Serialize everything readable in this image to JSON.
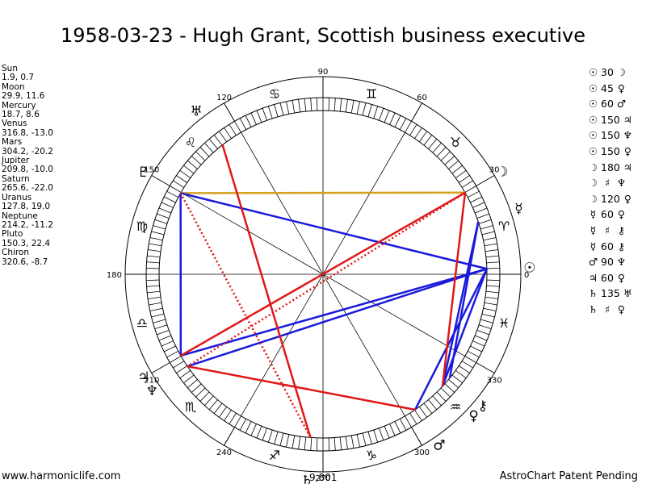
{
  "title": "1958-03-23 - Hugh Grant, Scottish business executive",
  "planets": [
    {
      "name": "Sun",
      "coords": "1.9, 0.7",
      "lon": 1.9,
      "glyph": "☉"
    },
    {
      "name": "Moon",
      "coords": "29.9, 11.6",
      "lon": 29.9,
      "glyph": "☽"
    },
    {
      "name": "Mercury",
      "coords": "18.7, 8.6",
      "lon": 18.7,
      "glyph": "☿"
    },
    {
      "name": "Venus",
      "coords": "316.8, -13.0",
      "lon": 316.8,
      "glyph": "♀"
    },
    {
      "name": "Mars",
      "coords": "304.2, -20.2",
      "lon": 304.2,
      "glyph": "♂"
    },
    {
      "name": "Jupiter",
      "coords": "209.8, -10.0",
      "lon": 209.8,
      "glyph": "♃"
    },
    {
      "name": "Saturn",
      "coords": "265.6, -22.0",
      "lon": 265.6,
      "glyph": "♄"
    },
    {
      "name": "Uranus",
      "coords": "127.8, 19.0",
      "lon": 127.8,
      "glyph": "♅"
    },
    {
      "name": "Neptune",
      "coords": "214.2, -11.2",
      "lon": 214.2,
      "glyph": "♆"
    },
    {
      "name": "Pluto",
      "coords": "150.3, 22.4",
      "lon": 150.3,
      "glyph": "♇"
    },
    {
      "name": "Chiron",
      "coords": "320.6, -8.7",
      "lon": 320.6,
      "glyph": "⚷"
    }
  ],
  "aspects": [
    {
      "p1": "☉",
      "angle": "30",
      "p2": "☽"
    },
    {
      "p1": "☉",
      "angle": "45",
      "p2": "♀"
    },
    {
      "p1": "☉",
      "angle": "60",
      "p2": "♂"
    },
    {
      "p1": "☉",
      "angle": "150",
      "p2": "♃"
    },
    {
      "p1": "☉",
      "angle": "150",
      "p2": "♆"
    },
    {
      "p1": "☉",
      "angle": "150",
      "p2": "♀"
    },
    {
      "p1": "☽",
      "angle": "180",
      "p2": "♃"
    },
    {
      "p1": "☽",
      "angle": "♯",
      "p2": "♆"
    },
    {
      "p1": "☽",
      "angle": "120",
      "p2": "♀"
    },
    {
      "p1": "☿",
      "angle": "60",
      "p2": "♀"
    },
    {
      "p1": "☿",
      "angle": "♯",
      "p2": "⚷"
    },
    {
      "p1": "☿",
      "angle": "60",
      "p2": "⚷"
    },
    {
      "p1": "♂",
      "angle": "90",
      "p2": "♆"
    },
    {
      "p1": "♃",
      "angle": "60",
      "p2": "♀"
    },
    {
      "p1": "♄",
      "angle": "135",
      "p2": "♅"
    },
    {
      "p1": "♄",
      "angle": "♯",
      "p2": "♀"
    }
  ],
  "degree_labels": [
    "0",
    "30",
    "60",
    "90",
    "120",
    "150",
    "180",
    "210",
    "240",
    "270",
    "300",
    "330"
  ],
  "zodiac_signs": [
    "♈",
    "♉",
    "♊",
    "♋",
    "♌",
    "♍",
    "♎",
    "♏",
    "♐",
    "♑",
    "♒",
    "♓"
  ],
  "extra_label": "9,801",
  "footer_left": "www.harmoniclife.com",
  "footer_right": "AstroChart Patent Pending",
  "colors": {
    "blue": "#1a1adc",
    "red": "#e01818",
    "gold": "#d4a020",
    "text": "#000000"
  },
  "chart_lines": [
    {
      "from": "Moon",
      "to": "Pluto",
      "color": "gold",
      "style": "solid"
    },
    {
      "from": "Sun",
      "to": "Pluto",
      "color": "blue",
      "style": "solid"
    },
    {
      "from": "Sun",
      "to": "Jupiter",
      "color": "blue",
      "style": "solid"
    },
    {
      "from": "Sun",
      "to": "Neptune",
      "color": "blue",
      "style": "solid"
    },
    {
      "from": "Sun",
      "to": "Mars",
      "color": "blue",
      "style": "solid"
    },
    {
      "from": "Sun",
      "to": "Venus",
      "color": "blue",
      "style": "solid"
    },
    {
      "from": "Mercury",
      "to": "Venus",
      "color": "blue",
      "style": "solid"
    },
    {
      "from": "Mercury",
      "to": "Chiron",
      "color": "blue",
      "style": "solid"
    },
    {
      "from": "Pluto",
      "to": "Jupiter",
      "color": "blue",
      "style": "solid"
    },
    {
      "from": "Moon",
      "to": "Jupiter",
      "color": "red",
      "style": "solid"
    },
    {
      "from": "Moon",
      "to": "Neptune",
      "color": "red",
      "style": "dotted"
    },
    {
      "from": "Uranus",
      "to": "Saturn",
      "color": "red",
      "style": "solid"
    },
    {
      "from": "Pluto",
      "to": "Saturn",
      "color": "red",
      "style": "dotted"
    },
    {
      "from": "Neptune",
      "to": "Mars",
      "color": "red",
      "style": "solid"
    },
    {
      "from": "Moon",
      "to": "Venus",
      "color": "red",
      "style": "solid"
    }
  ]
}
